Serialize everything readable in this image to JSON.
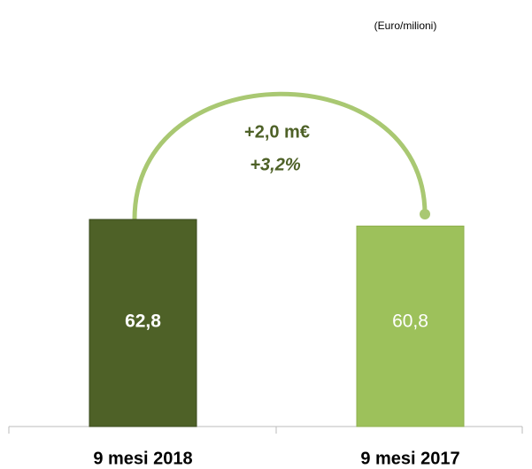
{
  "chart_data": {
    "type": "bar",
    "subtitle": "(Euro/milioni)",
    "categories": [
      "9 mesi 2018",
      "9 mesi 2017"
    ],
    "values": [
      62.8,
      60.8
    ],
    "value_labels": [
      "62,8",
      "60,8"
    ],
    "colors": [
      "#4e6127",
      "#9dc15b"
    ],
    "annotations": [
      "+2,0 m€",
      "+3,2%"
    ]
  }
}
